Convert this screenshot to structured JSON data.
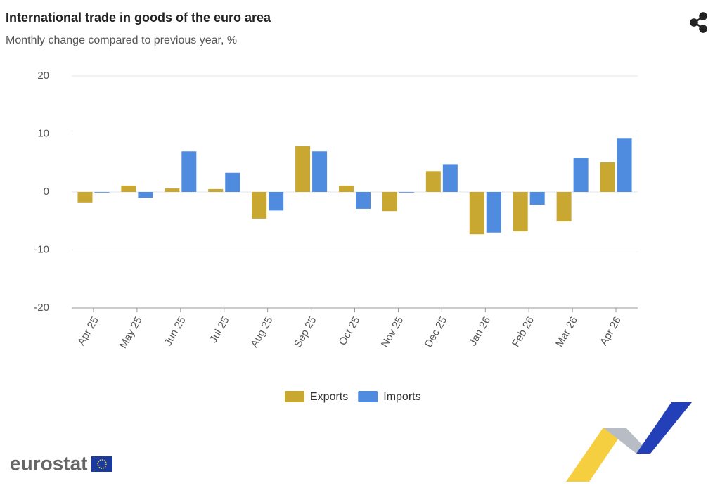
{
  "chart_data": {
    "type": "bar",
    "title": "International trade in goods of the euro area",
    "subtitle": "Monthly change compared to previous year, %",
    "categories": [
      "Apr 25",
      "May 25",
      "Jun 25",
      "Jul 25",
      "Aug 25",
      "Sep 25",
      "Oct 25",
      "Nov 25",
      "Dec 25",
      "Jan 26",
      "Feb 26",
      "Mar 26",
      "Apr 26"
    ],
    "series": [
      {
        "name": "Exports",
        "color": "#c9a832",
        "values": [
          -1.8,
          1.1,
          0.6,
          0.5,
          -4.6,
          7.9,
          1.1,
          -3.3,
          3.6,
          -7.3,
          -6.8,
          -5.1,
          5.1
        ]
      },
      {
        "name": "Imports",
        "color": "#4f8ce0",
        "values": [
          -0.1,
          -1.0,
          7.0,
          3.3,
          -3.2,
          7.0,
          -2.9,
          -0.1,
          4.8,
          -7.0,
          -2.2,
          5.9,
          9.3
        ]
      }
    ],
    "ylim": [
      -20,
      20
    ],
    "yticks": [
      20,
      10,
      0,
      -10,
      -20
    ],
    "grid": true,
    "legend": "bottom"
  },
  "logo": "eurostat"
}
